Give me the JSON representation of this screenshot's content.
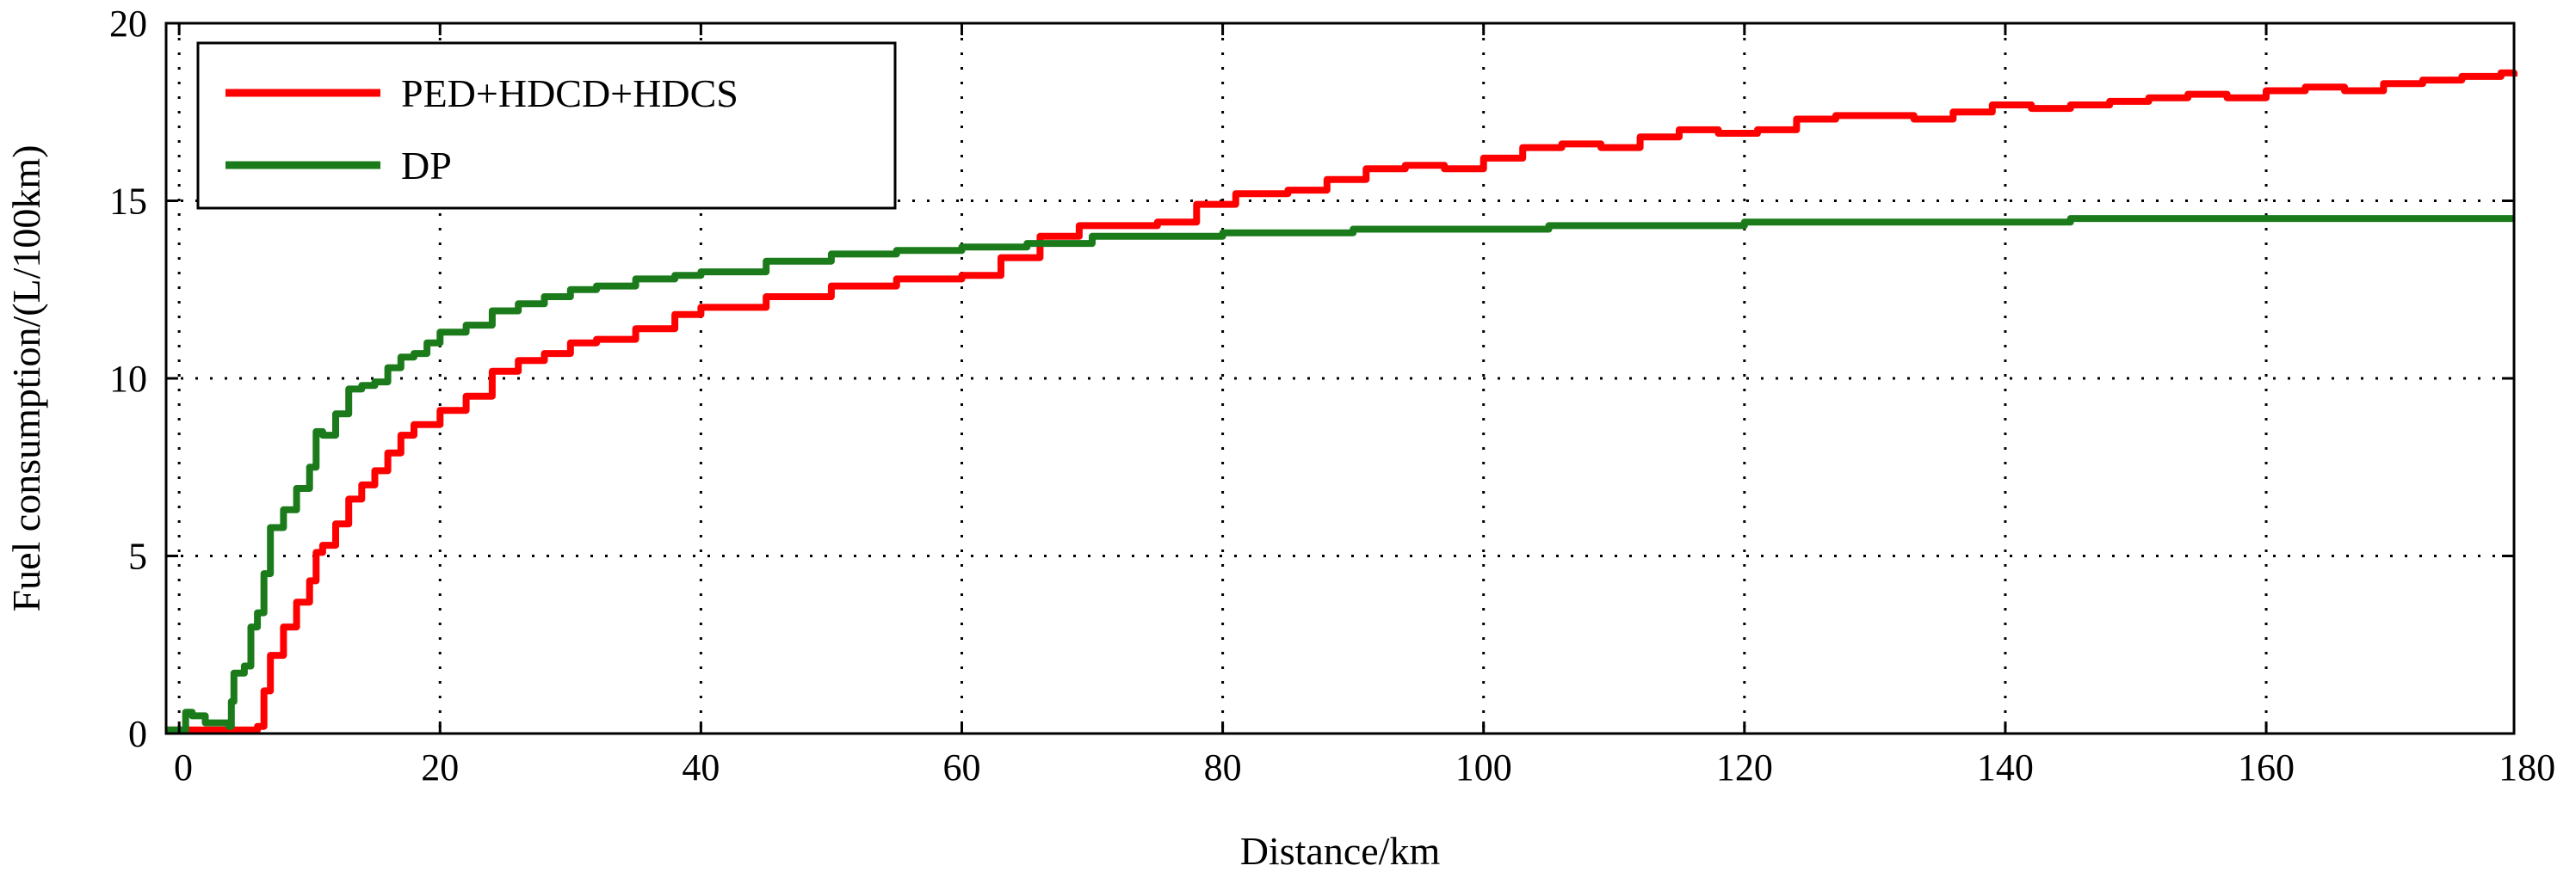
{
  "chart_data": {
    "type": "line",
    "title": "",
    "xlabel": "Distance/km",
    "ylabel": "Fuel consumption/(L/100km)",
    "xlim": [
      -1,
      179
    ],
    "ylim": [
      0,
      20
    ],
    "xticks": [
      0,
      20,
      40,
      60,
      80,
      100,
      120,
      140,
      160,
      180
    ],
    "yticks": [
      0,
      5,
      10,
      15,
      20
    ],
    "grid": true,
    "legend_position": "top-left",
    "series": [
      {
        "name": "PED+HDCD+HDCS",
        "color": "#ff0000",
        "x": [
          -1,
          5,
          6,
          6.5,
          7,
          8,
          9,
          10,
          10.5,
          11,
          12,
          13,
          14,
          15,
          16,
          17,
          18,
          20,
          22,
          24,
          26,
          28,
          30,
          32,
          35,
          38,
          40,
          45,
          50,
          55,
          60,
          63,
          66,
          69,
          72,
          75,
          78,
          81,
          85,
          88,
          91,
          94,
          97,
          100,
          103,
          106,
          109,
          112,
          115,
          118,
          121,
          124,
          127,
          130,
          133,
          136,
          139,
          142,
          145,
          148,
          151,
          154,
          157,
          160,
          163,
          166,
          169,
          172,
          175,
          178,
          179
        ],
        "y": [
          0.1,
          0.1,
          0.2,
          1.2,
          2.2,
          3.0,
          3.7,
          4.3,
          5.1,
          5.3,
          5.9,
          6.6,
          7.0,
          7.4,
          7.9,
          8.4,
          8.7,
          9.1,
          9.5,
          10.2,
          10.5,
          10.7,
          11.0,
          11.1,
          11.4,
          11.8,
          12.0,
          12.3,
          12.6,
          12.8,
          12.9,
          13.4,
          14.0,
          14.3,
          14.3,
          14.4,
          14.9,
          15.2,
          15.3,
          15.6,
          15.9,
          16.0,
          15.9,
          16.2,
          16.5,
          16.6,
          16.5,
          16.8,
          17.0,
          16.9,
          17.0,
          17.3,
          17.4,
          17.4,
          17.3,
          17.5,
          17.7,
          17.6,
          17.7,
          17.8,
          17.9,
          18.0,
          17.9,
          18.1,
          18.2,
          18.1,
          18.3,
          18.4,
          18.5,
          18.6,
          18.5
        ]
      },
      {
        "name": "DP",
        "color": "#1b7b1b",
        "x": [
          -1,
          0,
          0.5,
          1,
          2,
          3,
          3.8,
          4,
          4.2,
          5,
          5.5,
          6,
          6.5,
          7,
          8,
          9,
          10,
          10.5,
          11,
          12,
          13,
          14,
          15,
          16,
          17,
          18,
          19,
          20,
          22,
          24,
          26,
          28,
          30,
          32,
          35,
          38,
          40,
          45,
          50,
          55,
          60,
          65,
          70,
          75,
          80,
          85,
          90,
          95,
          100,
          105,
          110,
          115,
          120,
          125,
          130,
          135,
          140,
          145,
          150,
          155,
          160,
          165,
          170,
          175,
          179
        ],
        "y": [
          0.1,
          0.1,
          0.6,
          0.5,
          0.3,
          0.3,
          0.2,
          0.9,
          1.7,
          1.9,
          3.0,
          3.4,
          4.5,
          5.8,
          6.3,
          6.9,
          7.5,
          8.5,
          8.4,
          9.0,
          9.7,
          9.8,
          9.9,
          10.3,
          10.6,
          10.7,
          11.0,
          11.3,
          11.5,
          11.9,
          12.1,
          12.3,
          12.5,
          12.6,
          12.8,
          12.9,
          13.0,
          13.3,
          13.5,
          13.6,
          13.7,
          13.8,
          14.0,
          14.0,
          14.1,
          14.1,
          14.2,
          14.2,
          14.2,
          14.3,
          14.3,
          14.3,
          14.4,
          14.4,
          14.4,
          14.4,
          14.4,
          14.5,
          14.5,
          14.5,
          14.5,
          14.5,
          14.5,
          14.5,
          14.5
        ]
      }
    ]
  }
}
